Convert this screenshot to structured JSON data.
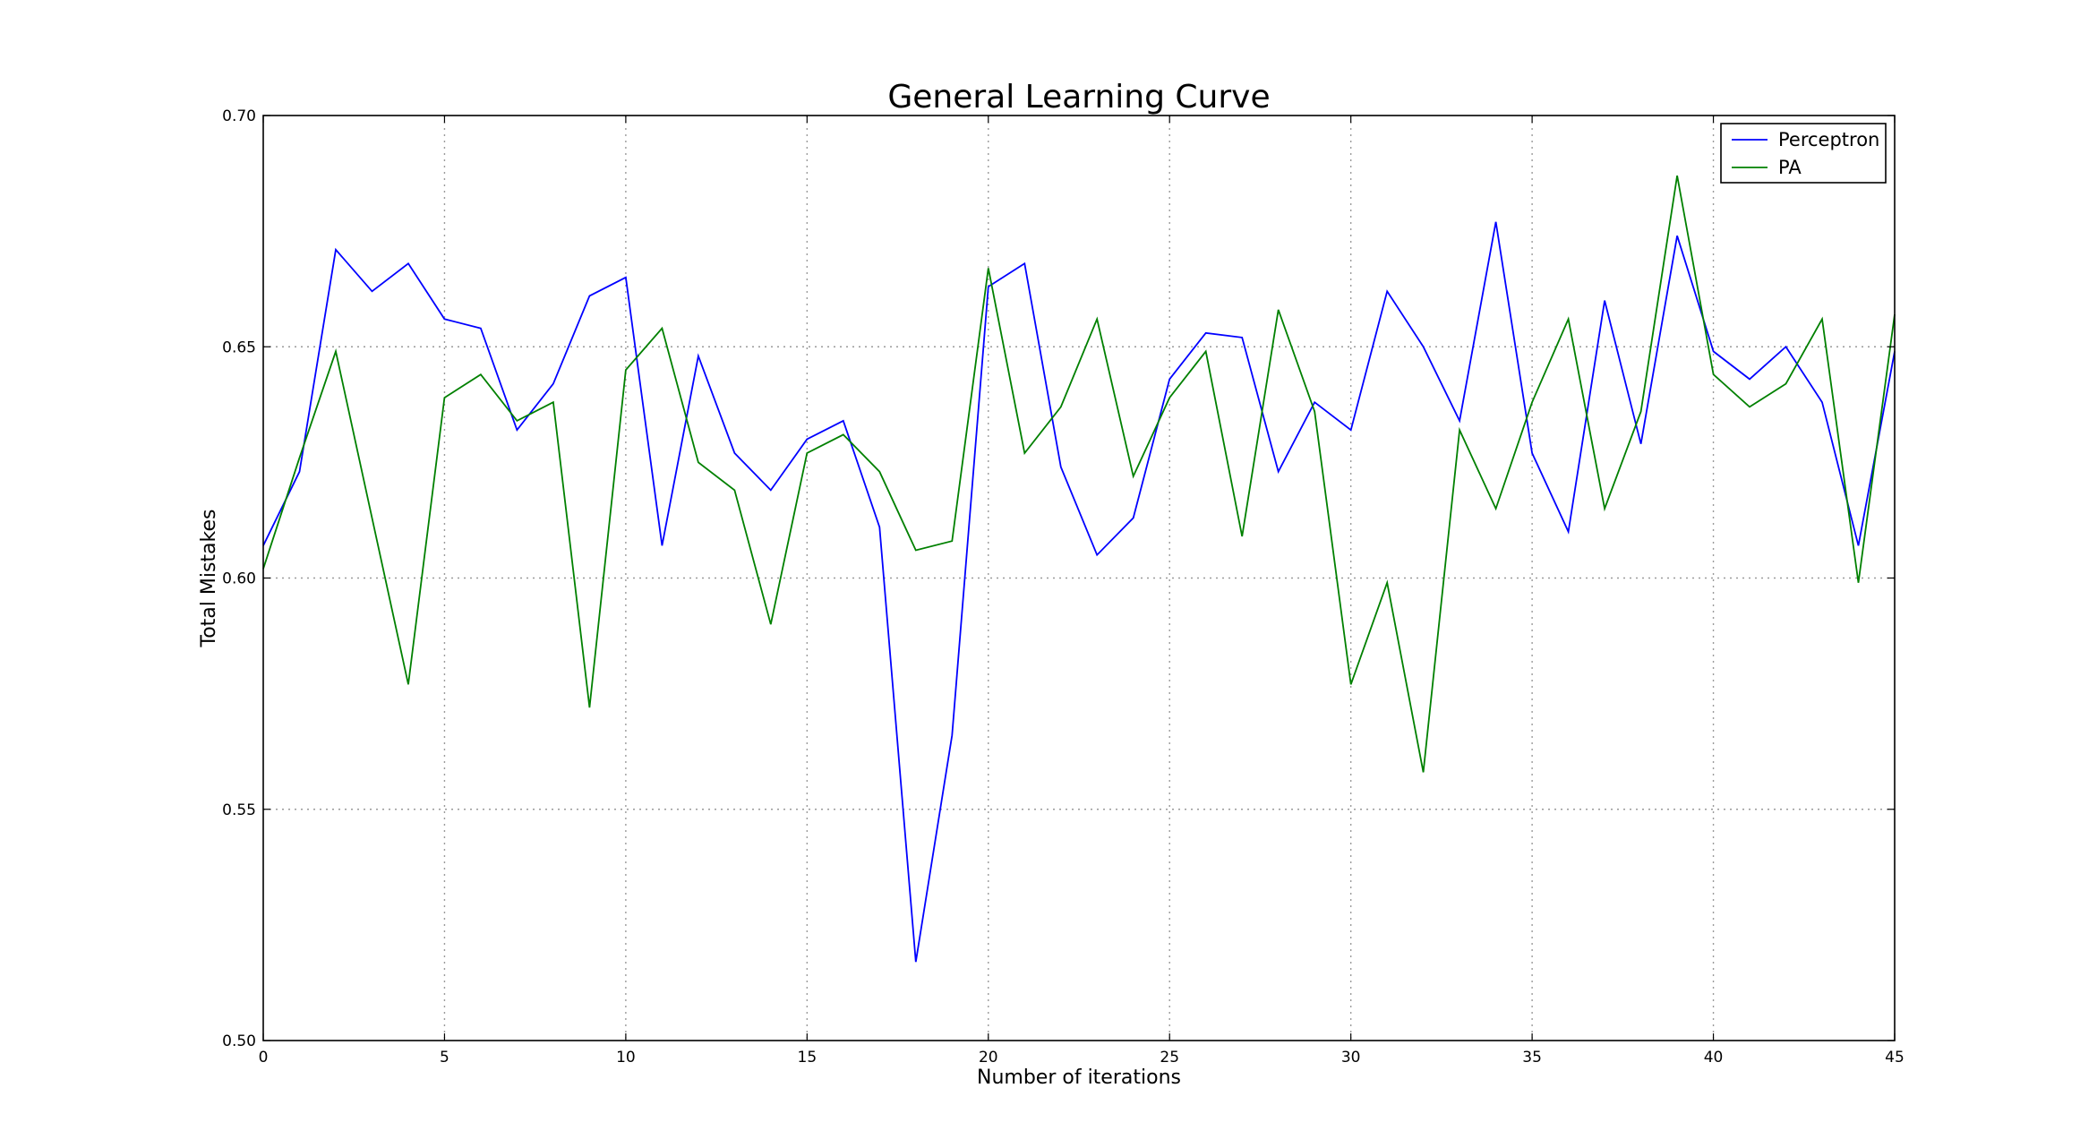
{
  "chart_data": {
    "type": "line",
    "title": "General Learning Curve",
    "xlabel": "Number of iterations",
    "ylabel": "Total Mistakes",
    "xlim": [
      0,
      45
    ],
    "ylim": [
      0.5,
      0.7
    ],
    "xticks": [
      0,
      5,
      10,
      15,
      20,
      25,
      30,
      35,
      40,
      45
    ],
    "xtick_labels": [
      "0",
      "5",
      "10",
      "15",
      "20",
      "25",
      "30",
      "35",
      "40",
      "45"
    ],
    "yticks": [
      0.5,
      0.55,
      0.6,
      0.65,
      0.7
    ],
    "ytick_labels": [
      "0.50",
      "0.55",
      "0.60",
      "0.65",
      "0.70"
    ],
    "grid": true,
    "legend_position": "top-right",
    "x": [
      0,
      1,
      2,
      3,
      4,
      5,
      6,
      7,
      8,
      9,
      10,
      11,
      12,
      13,
      14,
      15,
      16,
      17,
      18,
      19,
      20,
      21,
      22,
      23,
      24,
      25,
      26,
      27,
      28,
      29,
      30,
      31,
      32,
      33,
      34,
      35,
      36,
      37,
      38,
      39,
      40,
      41,
      42,
      43,
      44,
      45
    ],
    "series": [
      {
        "name": "Perceptron",
        "color": "#0000ff",
        "values": [
          0.607,
          0.623,
          0.671,
          0.662,
          0.668,
          0.656,
          0.654,
          0.632,
          0.642,
          0.661,
          0.665,
          0.607,
          0.648,
          0.627,
          0.619,
          0.63,
          0.634,
          0.611,
          0.517,
          0.566,
          0.663,
          0.668,
          0.624,
          0.605,
          0.613,
          0.643,
          0.653,
          0.652,
          0.623,
          0.638,
          0.632,
          0.662,
          0.65,
          0.634,
          0.677,
          0.627,
          0.61,
          0.66,
          0.629,
          0.674,
          0.649,
          0.643,
          0.65,
          0.638,
          0.607,
          0.649
        ]
      },
      {
        "name": "PA",
        "color": "#008000",
        "values": [
          0.602,
          0.626,
          0.649,
          0.613,
          0.577,
          0.639,
          0.644,
          0.634,
          0.638,
          0.572,
          0.645,
          0.654,
          0.625,
          0.619,
          0.59,
          0.627,
          0.631,
          0.623,
          0.606,
          0.608,
          0.667,
          0.627,
          0.637,
          0.656,
          0.622,
          0.639,
          0.649,
          0.609,
          0.658,
          0.636,
          0.577,
          0.599,
          0.558,
          0.632,
          0.615,
          0.638,
          0.656,
          0.615,
          0.636,
          0.687,
          0.644,
          0.637,
          0.642,
          0.656,
          0.599,
          0.657
        ]
      }
    ]
  }
}
